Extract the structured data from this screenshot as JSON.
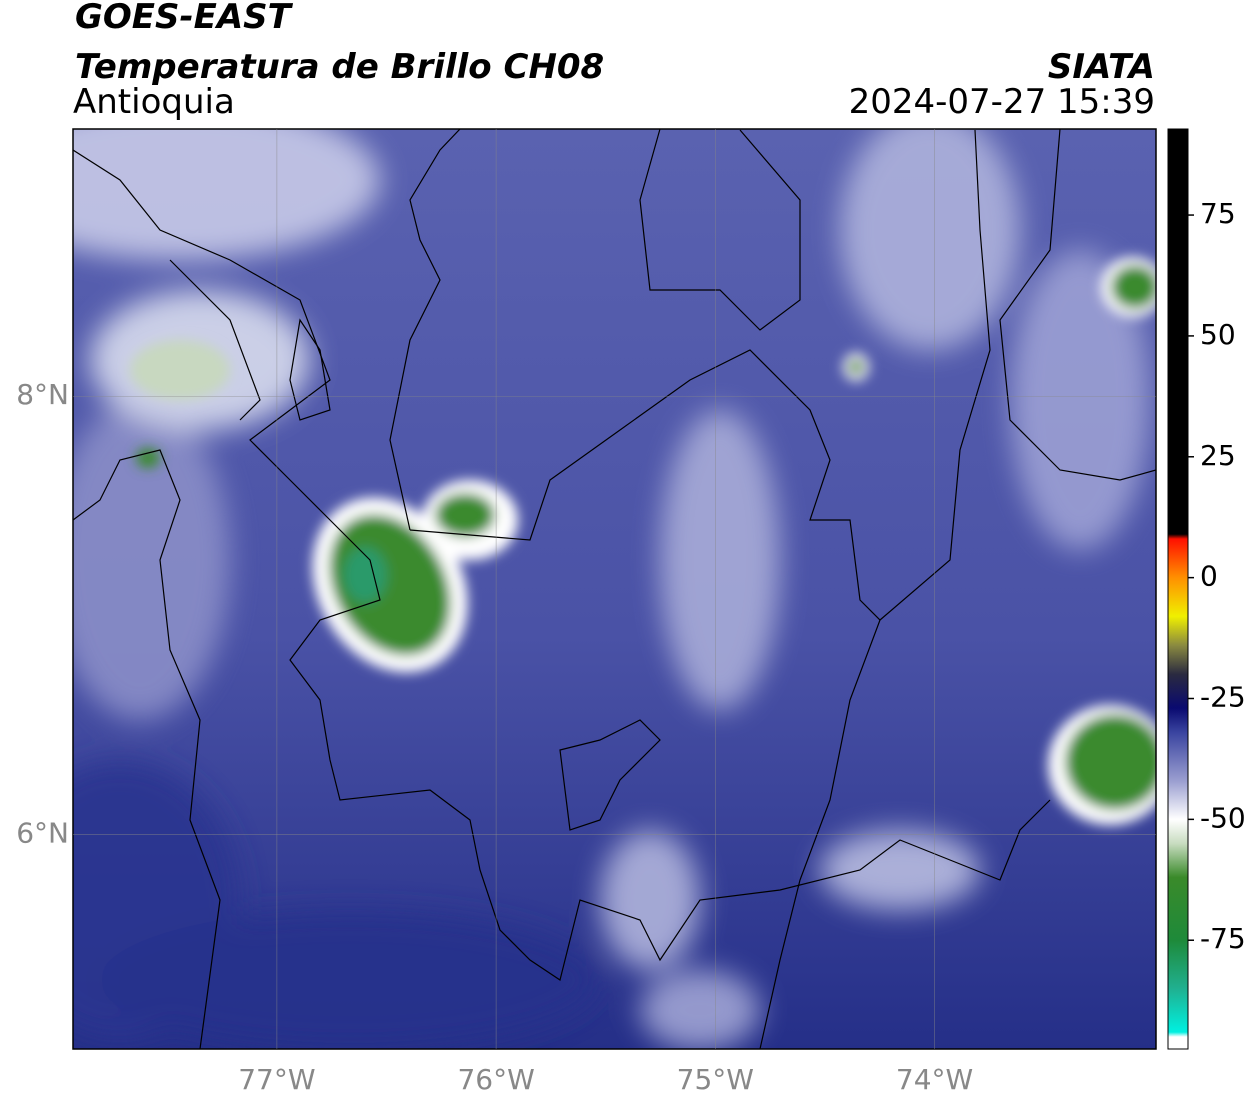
{
  "chart_data": {
    "type": "map",
    "title": "GOES-EAST",
    "subtitle": "Temperatura de Brillo CH08",
    "region": "Antioquia",
    "source": "SIATA",
    "timestamp": "2024-07-27 15:39",
    "xlim": [
      -77.93,
      -72.99
    ],
    "ylim": [
      5.02,
      9.22
    ],
    "xticks": [
      {
        "value": -77,
        "label": "77°W"
      },
      {
        "value": -76,
        "label": "76°W"
      },
      {
        "value": -75,
        "label": "75°W"
      },
      {
        "value": -74,
        "label": "74°W"
      }
    ],
    "yticks": [
      {
        "value": 6,
        "label": "6°N"
      },
      {
        "value": 8,
        "label": "8°N"
      }
    ],
    "grid": true,
    "colorbar": {
      "lim": [
        -97.5,
        92.8
      ],
      "ticks": [
        -75,
        -50,
        -25,
        0,
        25,
        50,
        75
      ],
      "stops": [
        {
          "value": -97.5,
          "color": "#ffffff"
        },
        {
          "value": -95,
          "color": "#ffffff"
        },
        {
          "value": -94,
          "color": "#00f0e0"
        },
        {
          "value": -85,
          "color": "#20b090"
        },
        {
          "value": -75,
          "color": "#1e8a3a"
        },
        {
          "value": -62,
          "color": "#3a8a2a"
        },
        {
          "value": -55,
          "color": "#c8dcc0"
        },
        {
          "value": -50,
          "color": "#ffffff"
        },
        {
          "value": -42,
          "color": "#9a9ed0"
        },
        {
          "value": -32,
          "color": "#3a44a0"
        },
        {
          "value": -27,
          "color": "#0a0a70"
        },
        {
          "value": -20,
          "color": "#2a2a40"
        },
        {
          "value": -14,
          "color": "#8a8a40"
        },
        {
          "value": -8,
          "color": "#f0f000"
        },
        {
          "value": 0,
          "color": "#ff9000"
        },
        {
          "value": 8,
          "color": "#ff1000"
        },
        {
          "value": 9,
          "color": "#000000"
        },
        {
          "value": 92.8,
          "color": "#000000"
        }
      ]
    }
  }
}
